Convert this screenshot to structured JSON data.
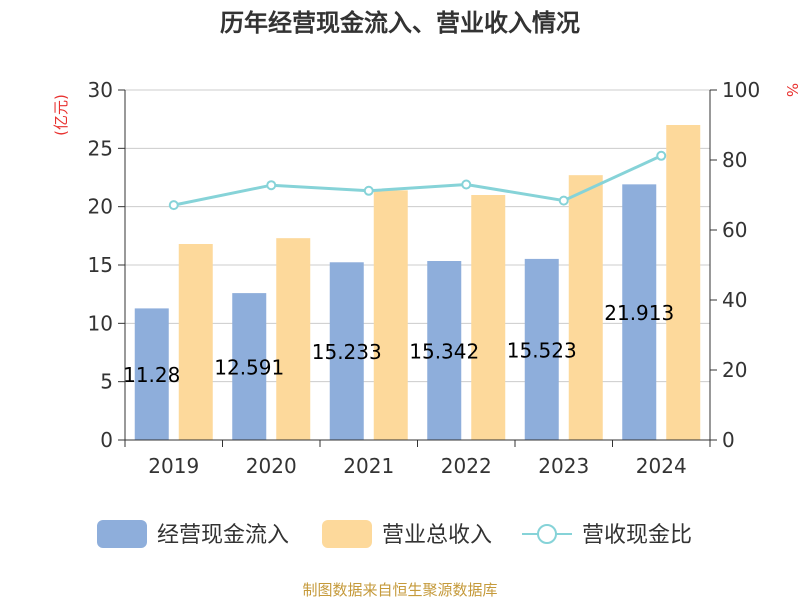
{
  "chart_data": {
    "type": "bar",
    "title": "历年经营现金流入、营业收入情况",
    "categories": [
      "2019",
      "2020",
      "2021",
      "2022",
      "2023",
      "2024"
    ],
    "series": [
      {
        "name": "经营现金流入",
        "values": [
          11.28,
          12.591,
          15.233,
          15.342,
          15.523,
          21.913
        ],
        "color": "#8eaedb",
        "labels": [
          "11.28",
          "12.591",
          "15.233",
          "15.342",
          "15.523",
          "21.913"
        ]
      },
      {
        "name": "营业总收入",
        "values": [
          16.8,
          17.3,
          21.4,
          21.0,
          22.7,
          27.0
        ],
        "color": "#fdd99b"
      },
      {
        "name": "营收现金比",
        "values": [
          67.1,
          72.8,
          71.2,
          73.0,
          68.4,
          81.2
        ],
        "color": "#86d3d8",
        "type": "line",
        "axis": "right"
      }
    ],
    "left_axis": {
      "label": "(亿元)",
      "ylim": [
        0,
        30
      ],
      "ticks": [
        0,
        5,
        10,
        15,
        20,
        25,
        30
      ],
      "label_color": "#e8312f"
    },
    "right_axis": {
      "label": "%",
      "ylim": [
        0,
        100
      ],
      "ticks": [
        0,
        20,
        40,
        60,
        80,
        100
      ],
      "label_color": "#e8312f"
    },
    "grid": true,
    "legend_position": "bottom",
    "source_text": "制图数据来自恒生聚源数据库",
    "source_color": "#c59a3b"
  }
}
